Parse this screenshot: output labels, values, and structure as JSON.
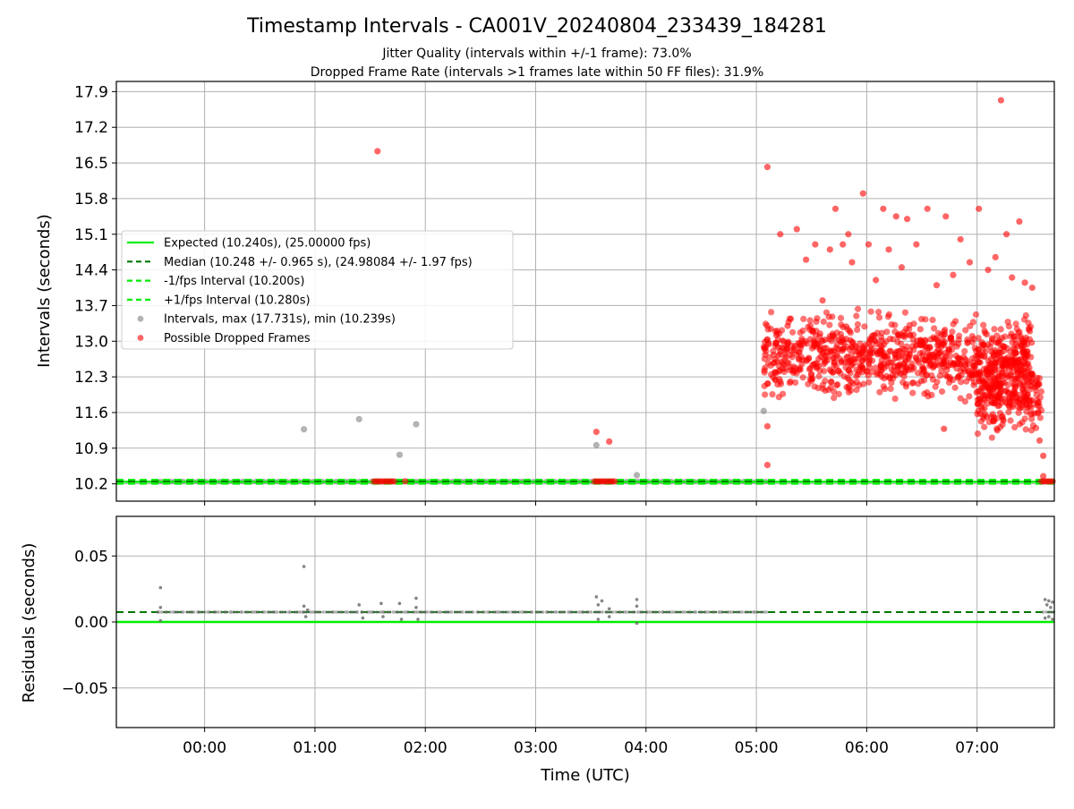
{
  "chart_data": [
    {
      "type": "scatter",
      "panel": "intervals",
      "title": "Timestamp Intervals - CA001V_20240804_233439_184281",
      "subtitle_lines": [
        "Jitter Quality (intervals within +/-1 frame): 73.0%",
        "Dropped Frame Rate (intervals >1 frames late within 50 FF files): 31.9%"
      ],
      "xlabel": "",
      "ylabel": "Intervals (seconds)",
      "xlim": [
        "2024-08-04T23:12:00",
        "2024-08-05T07:42:00"
      ],
      "ylim": [
        9.86,
        18.1
      ],
      "xticks": [
        "00:00",
        "01:00",
        "02:00",
        "03:00",
        "04:00",
        "05:00",
        "06:00",
        "07:00"
      ],
      "yticks": [
        "10.2",
        "10.9",
        "11.6",
        "12.3",
        "13.0",
        "13.7",
        "14.4",
        "15.1",
        "15.8",
        "16.5",
        "17.2",
        "17.9"
      ],
      "grid": true,
      "legend_position": "center-left",
      "legend": [
        "Expected (10.240s), (25.00000 fps)",
        "Median (10.248 +/- 0.965 s), (24.98084 +/- 1.97 fps)",
        "-1/fps Interval (10.200s)",
        "+1/fps Interval (10.280s)",
        "Intervals, max (17.731s), min (10.239s)",
        "Possible Dropped Frames"
      ],
      "reference_lines": [
        {
          "value": 10.24,
          "style": "solid",
          "color": "#00ee00"
        },
        {
          "value": 10.248,
          "style": "dashed",
          "color": "#007700"
        },
        {
          "value": 10.2,
          "style": "dashed",
          "color": "#00ee00"
        },
        {
          "value": 10.28,
          "style": "dashed",
          "color": "#00ee00"
        }
      ],
      "series": [
        {
          "name": "Intervals, max (17.731s), min (10.239s)",
          "color": "#808080",
          "baseline": {
            "y": 10.248,
            "x_ranges": [
              [
                "2024-08-04T23:34:00",
                "2024-08-05T05:06:00"
              ],
              [
                "2024-08-05T07:36:00",
                "2024-08-05T07:42:00"
              ]
            ]
          },
          "points": [
            {
              "x": "2024-08-05T00:54:00",
              "y": 11.27
            },
            {
              "x": "2024-08-05T01:24:00",
              "y": 11.47
            },
            {
              "x": "2024-08-05T01:46:00",
              "y": 10.77
            },
            {
              "x": "2024-08-05T01:55:00",
              "y": 11.37
            },
            {
              "x": "2024-08-05T03:33:00",
              "y": 10.96
            },
            {
              "x": "2024-08-05T03:55:00",
              "y": 10.37
            },
            {
              "x": "2024-08-05T05:04:00",
              "y": 11.63
            }
          ]
        },
        {
          "name": "Possible Dropped Frames",
          "color": "#ff0000",
          "clusters": [
            {
              "x_range": [
                "2024-08-05T01:32:00",
                "2024-08-05T01:43:00"
              ],
              "y": 10.248
            },
            {
              "x_range": [
                "2024-08-05T03:32:00",
                "2024-08-05T03:43:00"
              ],
              "y": 10.248
            },
            {
              "x_range": [
                "2024-08-05T07:35:00",
                "2024-08-05T07:42:00"
              ],
              "y": 10.248
            },
            {
              "x_range": [
                "2024-08-05T05:04:00",
                "2024-08-05T07:30:00"
              ],
              "y_mean": 12.7,
              "y_spread": 0.35
            },
            {
              "x_range": [
                "2024-08-05T07:00:00",
                "2024-08-05T07:35:00"
              ],
              "y_mean": 11.9,
              "y_spread": 0.3
            }
          ],
          "points": [
            {
              "x": "2024-08-05T01:34:00",
              "y": 16.73
            },
            {
              "x": "2024-08-05T01:49:00",
              "y": 10.25
            },
            {
              "x": "2024-08-05T03:33:00",
              "y": 11.22
            },
            {
              "x": "2024-08-05T03:40:00",
              "y": 11.03
            },
            {
              "x": "2024-08-05T05:06:00",
              "y": 16.42
            },
            {
              "x": "2024-08-05T05:06:00",
              "y": 10.57
            },
            {
              "x": "2024-08-05T05:06:00",
              "y": 11.33
            },
            {
              "x": "2024-08-05T05:13:00",
              "y": 15.1
            },
            {
              "x": "2024-08-05T05:17:00",
              "y": 13.3
            },
            {
              "x": "2024-08-05T05:22:00",
              "y": 15.2
            },
            {
              "x": "2024-08-05T05:27:00",
              "y": 14.6
            },
            {
              "x": "2024-08-05T05:32:00",
              "y": 14.9
            },
            {
              "x": "2024-08-05T05:36:00",
              "y": 13.8
            },
            {
              "x": "2024-08-05T05:40:00",
              "y": 14.8
            },
            {
              "x": "2024-08-05T05:43:00",
              "y": 15.6
            },
            {
              "x": "2024-08-05T05:47:00",
              "y": 14.9
            },
            {
              "x": "2024-08-05T05:50:00",
              "y": 15.1
            },
            {
              "x": "2024-08-05T05:52:00",
              "y": 14.55
            },
            {
              "x": "2024-08-05T05:58:00",
              "y": 15.9
            },
            {
              "x": "2024-08-05T06:01:00",
              "y": 14.9
            },
            {
              "x": "2024-08-05T06:05:00",
              "y": 14.2
            },
            {
              "x": "2024-08-05T06:09:00",
              "y": 15.6
            },
            {
              "x": "2024-08-05T06:12:00",
              "y": 14.8
            },
            {
              "x": "2024-08-05T06:16:00",
              "y": 15.45
            },
            {
              "x": "2024-08-05T06:19:00",
              "y": 14.45
            },
            {
              "x": "2024-08-05T06:22:00",
              "y": 15.4
            },
            {
              "x": "2024-08-05T06:27:00",
              "y": 14.9
            },
            {
              "x": "2024-08-05T06:33:00",
              "y": 15.6
            },
            {
              "x": "2024-08-05T06:38:00",
              "y": 14.1
            },
            {
              "x": "2024-08-05T06:43:00",
              "y": 15.45
            },
            {
              "x": "2024-08-05T06:47:00",
              "y": 14.3
            },
            {
              "x": "2024-08-05T06:51:00",
              "y": 15.0
            },
            {
              "x": "2024-08-05T06:56:00",
              "y": 14.55
            },
            {
              "x": "2024-08-05T07:01:00",
              "y": 15.6
            },
            {
              "x": "2024-08-05T07:06:00",
              "y": 14.4
            },
            {
              "x": "2024-08-05T07:10:00",
              "y": 14.65
            },
            {
              "x": "2024-08-05T07:13:00",
              "y": 17.73
            },
            {
              "x": "2024-08-05T07:16:00",
              "y": 15.1
            },
            {
              "x": "2024-08-05T07:19:00",
              "y": 14.25
            },
            {
              "x": "2024-08-05T07:23:00",
              "y": 15.35
            },
            {
              "x": "2024-08-05T07:26:00",
              "y": 14.15
            },
            {
              "x": "2024-08-05T07:30:00",
              "y": 14.05
            },
            {
              "x": "2024-08-05T06:42:00",
              "y": 11.28
            },
            {
              "x": "2024-08-05T07:11:00",
              "y": 11.25
            },
            {
              "x": "2024-08-05T07:34:00",
              "y": 11.05
            },
            {
              "x": "2024-08-05T07:36:00",
              "y": 10.75
            },
            {
              "x": "2024-08-05T07:36:00",
              "y": 10.35
            }
          ]
        }
      ]
    },
    {
      "type": "scatter",
      "panel": "residuals",
      "xlabel": "Time (UTC)",
      "ylabel": "Residuals (seconds)",
      "xlim": [
        "2024-08-04T23:12:00",
        "2024-08-05T07:42:00"
      ],
      "ylim": [
        -0.08,
        0.08
      ],
      "xticks": [
        "00:00",
        "01:00",
        "02:00",
        "03:00",
        "04:00",
        "05:00",
        "06:00",
        "07:00"
      ],
      "yticks": [
        "0.05",
        "0.00",
        "−0.05"
      ],
      "grid": true,
      "reference_lines": [
        {
          "value": 0.0,
          "style": "solid",
          "color": "#00ee00"
        },
        {
          "value": 0.0075,
          "style": "dashed",
          "color": "#007700"
        }
      ],
      "series": [
        {
          "name": "",
          "color": "#707070",
          "baseline": {
            "y": 0.0075,
            "x_ranges": [
              [
                "2024-08-04T23:34:00",
                "2024-08-05T05:06:00"
              ],
              [
                "2024-08-05T07:36:00",
                "2024-08-05T07:42:00"
              ]
            ]
          },
          "points": [
            {
              "x": "2024-08-04T23:36:00",
              "y": 0.026
            },
            {
              "x": "2024-08-04T23:36:00",
              "y": 0.011
            },
            {
              "x": "2024-08-04T23:36:00",
              "y": 0.001
            },
            {
              "x": "2024-08-05T00:54:00",
              "y": 0.042
            },
            {
              "x": "2024-08-05T00:54:00",
              "y": 0.012
            },
            {
              "x": "2024-08-05T00:55:00",
              "y": 0.004
            },
            {
              "x": "2024-08-05T00:56:00",
              "y": 0.009
            },
            {
              "x": "2024-08-05T01:24:00",
              "y": 0.013
            },
            {
              "x": "2024-08-05T01:26:00",
              "y": 0.003
            },
            {
              "x": "2024-08-05T01:36:00",
              "y": 0.014
            },
            {
              "x": "2024-08-05T01:37:00",
              "y": 0.004
            },
            {
              "x": "2024-08-05T01:46:00",
              "y": 0.014
            },
            {
              "x": "2024-08-05T01:47:00",
              "y": 0.002
            },
            {
              "x": "2024-08-05T01:55:00",
              "y": 0.018
            },
            {
              "x": "2024-08-05T01:55:00",
              "y": 0.011
            },
            {
              "x": "2024-08-05T01:56:00",
              "y": 0.002
            },
            {
              "x": "2024-08-05T03:33:00",
              "y": 0.019
            },
            {
              "x": "2024-08-05T03:34:00",
              "y": 0.013
            },
            {
              "x": "2024-08-05T03:34:00",
              "y": 0.002
            },
            {
              "x": "2024-08-05T03:36:00",
              "y": 0.016
            },
            {
              "x": "2024-08-05T03:40:00",
              "y": 0.01
            },
            {
              "x": "2024-08-05T03:40:00",
              "y": 0.004
            },
            {
              "x": "2024-08-05T03:55:00",
              "y": 0.017
            },
            {
              "x": "2024-08-05T03:55:00",
              "y": 0.012
            },
            {
              "x": "2024-08-05T03:55:00",
              "y": -0.001
            },
            {
              "x": "2024-08-05T07:37:00",
              "y": 0.017
            },
            {
              "x": "2024-08-05T07:38:00",
              "y": 0.013
            },
            {
              "x": "2024-08-05T07:39:00",
              "y": 0.016
            },
            {
              "x": "2024-08-05T07:40:00",
              "y": 0.011
            },
            {
              "x": "2024-08-05T07:41:00",
              "y": 0.015
            },
            {
              "x": "2024-08-05T07:37:00",
              "y": 0.003
            },
            {
              "x": "2024-08-05T07:39:00",
              "y": 0.004
            },
            {
              "x": "2024-08-05T07:41:00",
              "y": 0.002
            }
          ]
        }
      ]
    }
  ]
}
